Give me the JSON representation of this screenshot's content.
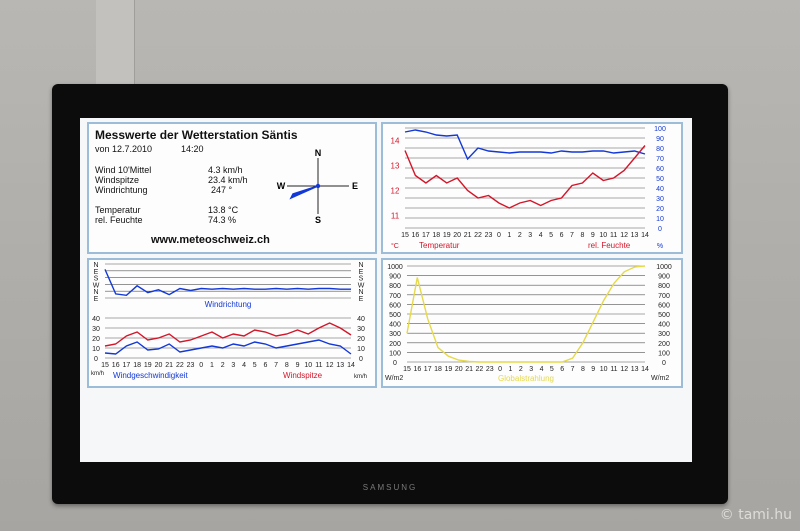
{
  "info": {
    "title": "Messwerte der Wetterstation Säntis",
    "date": "von 12.7.2010",
    "time": "14:20",
    "rows": [
      {
        "label": "Wind 10'Mittel",
        "value": "4.3 km/h"
      },
      {
        "label": "Windspitze",
        "value": "23.4 km/h"
      },
      {
        "label": "Windrichtung",
        "value": "247 °"
      },
      {
        "label": "Temperatur",
        "value": "13.8 °C"
      },
      {
        "label": "rel. Feuchte",
        "value": "74.3 %"
      }
    ],
    "compass": {
      "n": "N",
      "e": "E",
      "s": "S",
      "w": "W"
    },
    "url": "www.meteoschweiz.ch"
  },
  "chart_data": [
    {
      "type": "line",
      "name": "temp-humidity",
      "x_ticks": [
        "15",
        "16",
        "17",
        "18",
        "19",
        "20",
        "21",
        "22",
        "23",
        "0",
        "1",
        "2",
        "3",
        "4",
        "5",
        "6",
        "7",
        "8",
        "9",
        "10",
        "11",
        "12",
        "13",
        "14"
      ],
      "y_left_ticks": [
        "11",
        "12",
        "13",
        "14"
      ],
      "y_left_unit": "°C",
      "y_right_ticks": [
        "0",
        "10",
        "20",
        "30",
        "40",
        "50",
        "60",
        "70",
        "80",
        "90",
        "100"
      ],
      "y_right_unit": "%",
      "xlabel_left": "Temperatur",
      "xlabel_right": "rel. Feuchte",
      "series": [
        {
          "name": "Temperatur",
          "color": "#d4162a",
          "axis": "left",
          "values": [
            13.6,
            12.6,
            12.3,
            12.6,
            12.3,
            12.5,
            12.0,
            11.7,
            11.8,
            11.5,
            11.3,
            11.5,
            11.6,
            11.4,
            11.6,
            11.7,
            12.2,
            12.3,
            12.7,
            12.4,
            12.5,
            12.8,
            13.3,
            13.8
          ]
        },
        {
          "name": "rel. Feuchte",
          "color": "#1238d8",
          "axis": "right",
          "values": [
            96,
            98,
            96,
            93,
            92,
            93,
            69,
            80,
            77,
            76,
            75,
            76,
            76,
            76,
            75,
            77,
            76,
            76,
            77,
            77,
            75,
            76,
            77,
            74
          ]
        }
      ]
    },
    {
      "type": "line",
      "name": "wind-direction",
      "x_ticks": [
        "15",
        "16",
        "17",
        "18",
        "19",
        "20",
        "21",
        "22",
        "23",
        "0",
        "1",
        "2",
        "3",
        "4",
        "5",
        "6",
        "7",
        "8",
        "9",
        "10",
        "11",
        "12",
        "13",
        "14"
      ],
      "y_ticks": [
        "N",
        "E",
        "S",
        "W",
        "N",
        "E"
      ],
      "xlabel": "Windrichtung",
      "series": [
        {
          "name": "Windrichtung",
          "color": "#1238d8",
          "values": [
            0.8,
            4.4,
            4.6,
            3.2,
            4.2,
            3.8,
            4.5,
            3.6,
            3.9,
            3.6,
            3.7,
            3.6,
            3.7,
            3.6,
            3.7,
            3.7,
            3.6,
            3.7,
            3.6,
            3.7,
            3.6,
            3.6,
            3.7,
            3.7
          ]
        }
      ]
    },
    {
      "type": "line",
      "name": "wind-speed",
      "x_ticks": [
        "15",
        "16",
        "17",
        "18",
        "19",
        "20",
        "21",
        "22",
        "23",
        "0",
        "1",
        "2",
        "3",
        "4",
        "5",
        "6",
        "7",
        "8",
        "9",
        "10",
        "11",
        "12",
        "13",
        "14"
      ],
      "y_ticks": [
        "0",
        "10",
        "20",
        "30",
        "40"
      ],
      "unit_left": "km/h",
      "unit_right": "km/h",
      "xlabel_left": "Windgeschwindigkeit",
      "xlabel_right": "Windspitze",
      "series": [
        {
          "name": "Windgeschwindigkeit",
          "color": "#1238d8",
          "values": [
            5,
            4,
            12,
            16,
            8,
            9,
            14,
            6,
            8,
            10,
            12,
            10,
            14,
            12,
            16,
            14,
            10,
            12,
            14,
            16,
            18,
            14,
            12,
            4
          ]
        },
        {
          "name": "Windspitze",
          "color": "#d4162a",
          "values": [
            12,
            14,
            22,
            26,
            18,
            20,
            24,
            16,
            18,
            22,
            26,
            20,
            24,
            22,
            28,
            26,
            22,
            24,
            28,
            24,
            30,
            35,
            30,
            23
          ]
        }
      ]
    },
    {
      "type": "line",
      "name": "radiation",
      "x_ticks": [
        "15",
        "16",
        "17",
        "18",
        "19",
        "20",
        "21",
        "22",
        "23",
        "0",
        "1",
        "2",
        "3",
        "4",
        "5",
        "6",
        "7",
        "8",
        "9",
        "10",
        "11",
        "12",
        "13",
        "14"
      ],
      "y_ticks": [
        "0",
        "100",
        "200",
        "300",
        "400",
        "500",
        "600",
        "700",
        "800",
        "900",
        "1000"
      ],
      "unit_left": "W/m2",
      "unit_right": "W/m2",
      "xlabel": "Globalstrahlung",
      "series": [
        {
          "name": "Globalstrahlung",
          "color": "#e6d94a",
          "values": [
            300,
            880,
            450,
            150,
            60,
            20,
            5,
            0,
            0,
            0,
            0,
            0,
            0,
            0,
            0,
            0,
            40,
            200,
            420,
            640,
            820,
            940,
            990,
            1000
          ]
        }
      ]
    }
  ],
  "tv": {
    "brand": "SAMSUNG"
  },
  "watermark": "© tami.hu"
}
